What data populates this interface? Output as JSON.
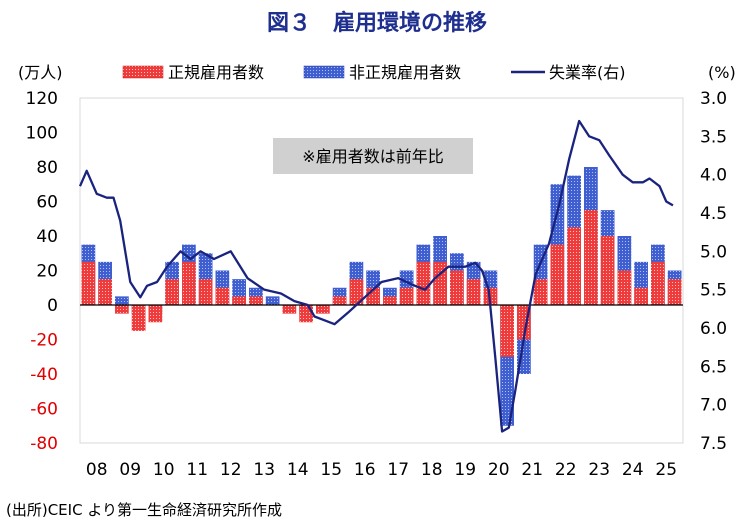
{
  "title": "図３　雇用環境の推移",
  "source": "(出所)CEIC より第一生命経済研究所作成",
  "colors": {
    "title": "#1f2f8f",
    "regular": "#ef3b3b",
    "regular_dots": "#ffffff",
    "non_regular": "#3f5fd0",
    "non_regular_dots": "#cfd8ff",
    "unemployment": "#1a237e",
    "note_bg": "#d0d0d0",
    "negative_tick": "#e00000",
    "axis": "#000000"
  },
  "chart_data": {
    "type": "bar+line",
    "title": "図３　雇用環境の推移",
    "y_left": {
      "label": "(万人)",
      "lim": [
        -80,
        120
      ],
      "ticks": [
        120,
        100,
        80,
        60,
        40,
        20,
        0,
        -20,
        -40,
        -60,
        -80
      ]
    },
    "y_right": {
      "label": "(%)",
      "lim": [
        3.0,
        7.5
      ],
      "inverted": true,
      "ticks": [
        3.0,
        3.5,
        4.0,
        4.5,
        5.0,
        5.5,
        6.0,
        6.5,
        7.0,
        7.5
      ]
    },
    "x": {
      "start": 2008,
      "end": 2025,
      "tick_labels": [
        "08",
        "09",
        "10",
        "11",
        "12",
        "13",
        "14",
        "15",
        "16",
        "17",
        "18",
        "19",
        "20",
        "21",
        "22",
        "23",
        "24",
        "25"
      ]
    },
    "legend": [
      "正規雇用者数",
      "非正規雇用者数",
      "失業率(右)"
    ],
    "annotation": "※雇用者数は前年比",
    "series": [
      {
        "name": "正規雇用者数",
        "type": "bar",
        "axis": "left",
        "x": [
          2008.0,
          2008.5,
          2009.0,
          2009.5,
          2010.0,
          2010.5,
          2011.0,
          2011.5,
          2012.0,
          2012.5,
          2013.0,
          2013.5,
          2014.0,
          2014.5,
          2015.0,
          2015.5,
          2016.0,
          2016.5,
          2017.0,
          2017.5,
          2018.0,
          2018.5,
          2019.0,
          2019.5,
          2020.0,
          2020.5,
          2021.0,
          2021.5,
          2022.0,
          2022.5,
          2023.0,
          2023.5,
          2024.0,
          2024.5,
          2025.0,
          2025.5
        ],
        "values": [
          25,
          15,
          -5,
          -15,
          -10,
          15,
          25,
          15,
          10,
          5,
          5,
          0,
          -5,
          -10,
          -5,
          5,
          15,
          10,
          5,
          10,
          25,
          25,
          20,
          15,
          10,
          -30,
          -20,
          15,
          35,
          45,
          55,
          40,
          20,
          10,
          25,
          15
        ]
      },
      {
        "name": "非正規雇用者数",
        "type": "bar",
        "axis": "left",
        "x": [
          2008.0,
          2008.5,
          2009.0,
          2009.5,
          2010.0,
          2010.5,
          2011.0,
          2011.5,
          2012.0,
          2012.5,
          2013.0,
          2013.5,
          2014.0,
          2014.5,
          2015.0,
          2015.5,
          2016.0,
          2016.5,
          2017.0,
          2017.5,
          2018.0,
          2018.5,
          2019.0,
          2019.5,
          2020.0,
          2020.5,
          2021.0,
          2021.5,
          2022.0,
          2022.5,
          2023.0,
          2023.5,
          2024.0,
          2024.5,
          2025.0,
          2025.5
        ],
        "values": [
          35,
          25,
          5,
          -5,
          -5,
          25,
          35,
          30,
          20,
          15,
          10,
          5,
          0,
          -5,
          0,
          10,
          25,
          20,
          10,
          20,
          35,
          40,
          30,
          25,
          20,
          -70,
          -40,
          35,
          70,
          75,
          80,
          55,
          40,
          25,
          35,
          20
        ]
      },
      {
        "name": "失業率(右)",
        "type": "line",
        "axis": "right",
        "x": [
          2008.0,
          2008.2,
          2008.5,
          2008.8,
          2009.0,
          2009.2,
          2009.5,
          2009.8,
          2010.0,
          2010.3,
          2010.6,
          2011.0,
          2011.3,
          2011.6,
          2012.0,
          2012.5,
          2013.0,
          2013.5,
          2014.0,
          2014.4,
          2014.8,
          2015.0,
          2015.3,
          2015.6,
          2016.0,
          2016.5,
          2017.0,
          2017.5,
          2018.0,
          2018.3,
          2018.6,
          2019.0,
          2019.5,
          2019.8,
          2020.0,
          2020.2,
          2020.4,
          2020.6,
          2020.8,
          2021.0,
          2021.3,
          2021.6,
          2022.0,
          2022.3,
          2022.6,
          2022.9,
          2023.2,
          2023.5,
          2023.8,
          2024.2,
          2024.5,
          2024.8,
          2025.0,
          2025.3,
          2025.5,
          2025.7
        ],
        "values": [
          4.15,
          3.95,
          4.25,
          4.3,
          4.3,
          4.6,
          5.4,
          5.6,
          5.45,
          5.4,
          5.2,
          5.0,
          5.1,
          5.0,
          5.1,
          5.0,
          5.35,
          5.5,
          5.55,
          5.65,
          5.7,
          5.85,
          5.9,
          5.95,
          5.8,
          5.6,
          5.4,
          5.35,
          5.45,
          5.5,
          5.35,
          5.2,
          5.2,
          5.15,
          5.25,
          5.5,
          6.4,
          7.35,
          7.3,
          6.8,
          6.0,
          5.3,
          4.9,
          4.4,
          3.8,
          3.3,
          3.5,
          3.55,
          3.75,
          4.0,
          4.1,
          4.1,
          4.05,
          4.15,
          4.35,
          4.4
        ]
      }
    ]
  }
}
